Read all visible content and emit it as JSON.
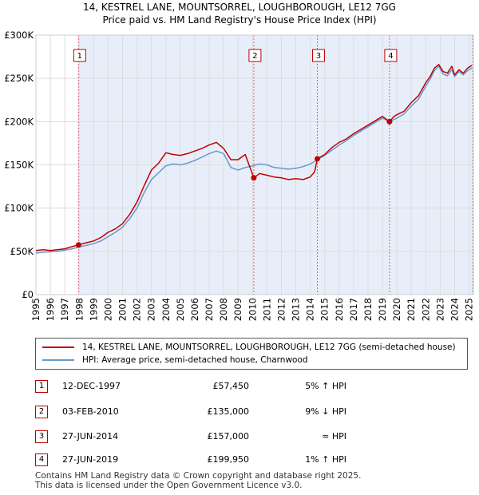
{
  "title_line1": "14, KESTREL LANE, MOUNTSORREL, LOUGHBOROUGH, LE12 7GG",
  "title_line2": "Price paid vs. HM Land Registry's House Price Index (HPI)",
  "chart_data": {
    "type": "line",
    "title": "14, KESTREL LANE, MOUNTSORREL, LOUGHBOROUGH, LE12 7GG",
    "subtitle": "Price paid vs. HM Land Registry's House Price Index (HPI)",
    "xlabel": "",
    "ylabel": "",
    "xlim": [
      1995,
      2025.3
    ],
    "ylim": [
      0,
      300000
    ],
    "y_ticks": [
      0,
      50000,
      100000,
      150000,
      200000,
      250000,
      300000
    ],
    "y_tick_labels": [
      "£0",
      "£50K",
      "£100K",
      "£150K",
      "£200K",
      "£250K",
      "£300K"
    ],
    "x_ticks": [
      1995,
      1996,
      1997,
      1998,
      1999,
      2000,
      2001,
      2002,
      2003,
      2004,
      2005,
      2006,
      2007,
      2008,
      2009,
      2010,
      2011,
      2012,
      2013,
      2014,
      2015,
      2016,
      2017,
      2018,
      2019,
      2020,
      2021,
      2022,
      2023,
      2024,
      2025
    ],
    "x_tick_labels": [
      "1995",
      "1996",
      "1997",
      "1998",
      "1999",
      "2000",
      "2001",
      "2002",
      "2003",
      "2004",
      "2005",
      "2006",
      "2007",
      "2008",
      "2009",
      "2010",
      "2011",
      "2012",
      "2013",
      "2014",
      "2015",
      "2016",
      "2017",
      "2018",
      "2019",
      "2020",
      "2021",
      "2022",
      "2023",
      "2024",
      "2025"
    ],
    "grid": true,
    "series": [
      {
        "name": "14, KESTREL LANE, MOUNTSORREL, LOUGHBOROUGH, LE12 7GG (semi-detached house)",
        "color": "#c00000",
        "x": [
          1995,
          1995.5,
          1996,
          1996.5,
          1997,
          1997.5,
          1997.95,
          1998.5,
          1999,
          1999.5,
          2000,
          2000.5,
          2001,
          2001.5,
          2002,
          2002.5,
          2003,
          2003.5,
          2004,
          2004.5,
          2005,
          2005.5,
          2006,
          2006.5,
          2007,
          2007.5,
          2008,
          2008.5,
          2009,
          2009.5,
          2010.09,
          2010.5,
          2011,
          2011.5,
          2012,
          2012.5,
          2013,
          2013.5,
          2014,
          2014.3,
          2014.49,
          2015,
          2015.5,
          2016,
          2016.5,
          2017,
          2017.5,
          2018,
          2018.5,
          2019,
          2019.49,
          2019.8,
          2020,
          2020.5,
          2021,
          2021.5,
          2022,
          2022.3,
          2022.6,
          2022.9,
          2023.2,
          2023.5,
          2023.8,
          2024,
          2024.3,
          2024.6,
          2024.9,
          2025.2
        ],
        "values": [
          51000,
          52000,
          51000,
          52000,
          53000,
          55500,
          57450,
          60000,
          62000,
          66000,
          72000,
          76000,
          82000,
          93000,
          107000,
          126000,
          144000,
          152000,
          164000,
          162000,
          161000,
          163000,
          166000,
          169000,
          173000,
          176000,
          169000,
          156000,
          156000,
          162000,
          135000,
          140000,
          138000,
          136000,
          135000,
          133000,
          134000,
          133000,
          136000,
          142000,
          157000,
          162000,
          170000,
          176000,
          180000,
          186000,
          191000,
          196000,
          201000,
          206000,
          199950,
          206000,
          208000,
          212000,
          222000,
          230000,
          245000,
          252000,
          262000,
          266000,
          258000,
          256000,
          264000,
          254000,
          260000,
          256000,
          262000,
          265000
        ]
      },
      {
        "name": "HPI: Average price, semi-detached house, Charnwood",
        "color": "#6699cc",
        "x": [
          1995,
          1995.5,
          1996,
          1996.5,
          1997,
          1997.5,
          1998,
          1998.5,
          1999,
          1999.5,
          2000,
          2000.5,
          2001,
          2001.5,
          2002,
          2002.5,
          2003,
          2003.5,
          2004,
          2004.5,
          2005,
          2005.5,
          2006,
          2006.5,
          2007,
          2007.5,
          2008,
          2008.5,
          2009,
          2009.5,
          2010,
          2010.5,
          2011,
          2011.5,
          2012,
          2012.5,
          2013,
          2013.5,
          2014,
          2014.5,
          2015,
          2015.5,
          2016,
          2016.5,
          2017,
          2017.5,
          2018,
          2018.5,
          2019,
          2019.5,
          2020,
          2020.5,
          2021,
          2021.5,
          2022,
          2022.3,
          2022.6,
          2022.9,
          2023.2,
          2023.5,
          2023.8,
          2024,
          2024.3,
          2024.6,
          2024.9,
          2025.2
        ],
        "values": [
          48000,
          49000,
          49500,
          50000,
          51500,
          53000,
          55000,
          57000,
          59000,
          62000,
          67000,
          72000,
          78000,
          88000,
          100000,
          118000,
          133000,
          141000,
          149000,
          151000,
          150000,
          152000,
          155000,
          159000,
          163000,
          166000,
          163000,
          147000,
          144000,
          147000,
          149000,
          151000,
          150000,
          147000,
          146000,
          145000,
          146000,
          148000,
          151000,
          156000,
          161000,
          167000,
          173000,
          178000,
          184000,
          189000,
          194000,
          199000,
          204000,
          200000,
          204000,
          209000,
          218000,
          226000,
          241000,
          249000,
          259000,
          264000,
          255000,
          253000,
          260000,
          252000,
          258000,
          254000,
          259000,
          262000
        ]
      }
    ],
    "annotations": [
      {
        "label": "1",
        "x": 1997.95,
        "y": 57450
      },
      {
        "label": "2",
        "x": 2010.09,
        "y": 135000
      },
      {
        "label": "3",
        "x": 2014.49,
        "y": 157000
      },
      {
        "label": "4",
        "x": 2019.49,
        "y": 199950
      }
    ]
  },
  "legend": {
    "property": "14, KESTREL LANE, MOUNTSORREL, LOUGHBOROUGH, LE12 7GG (semi-detached house)",
    "hpi": "HPI: Average price, semi-detached house, Charnwood",
    "property_color": "#c00000",
    "hpi_color": "#6699cc"
  },
  "transactions": [
    {
      "num": "1",
      "date": "12-DEC-1997",
      "price": "£57,450",
      "delta": "5% ↑ HPI"
    },
    {
      "num": "2",
      "date": "03-FEB-2010",
      "price": "£135,000",
      "delta": "9% ↓ HPI"
    },
    {
      "num": "3",
      "date": "27-JUN-2014",
      "price": "£157,000",
      "delta": "≈ HPI"
    },
    {
      "num": "4",
      "date": "27-JUN-2019",
      "price": "£199,950",
      "delta": "1% ↑ HPI"
    }
  ],
  "footer": {
    "line1": "Contains HM Land Registry data © Crown copyright and database right 2025.",
    "line2": "This data is licensed under the Open Government Licence v3.0."
  }
}
